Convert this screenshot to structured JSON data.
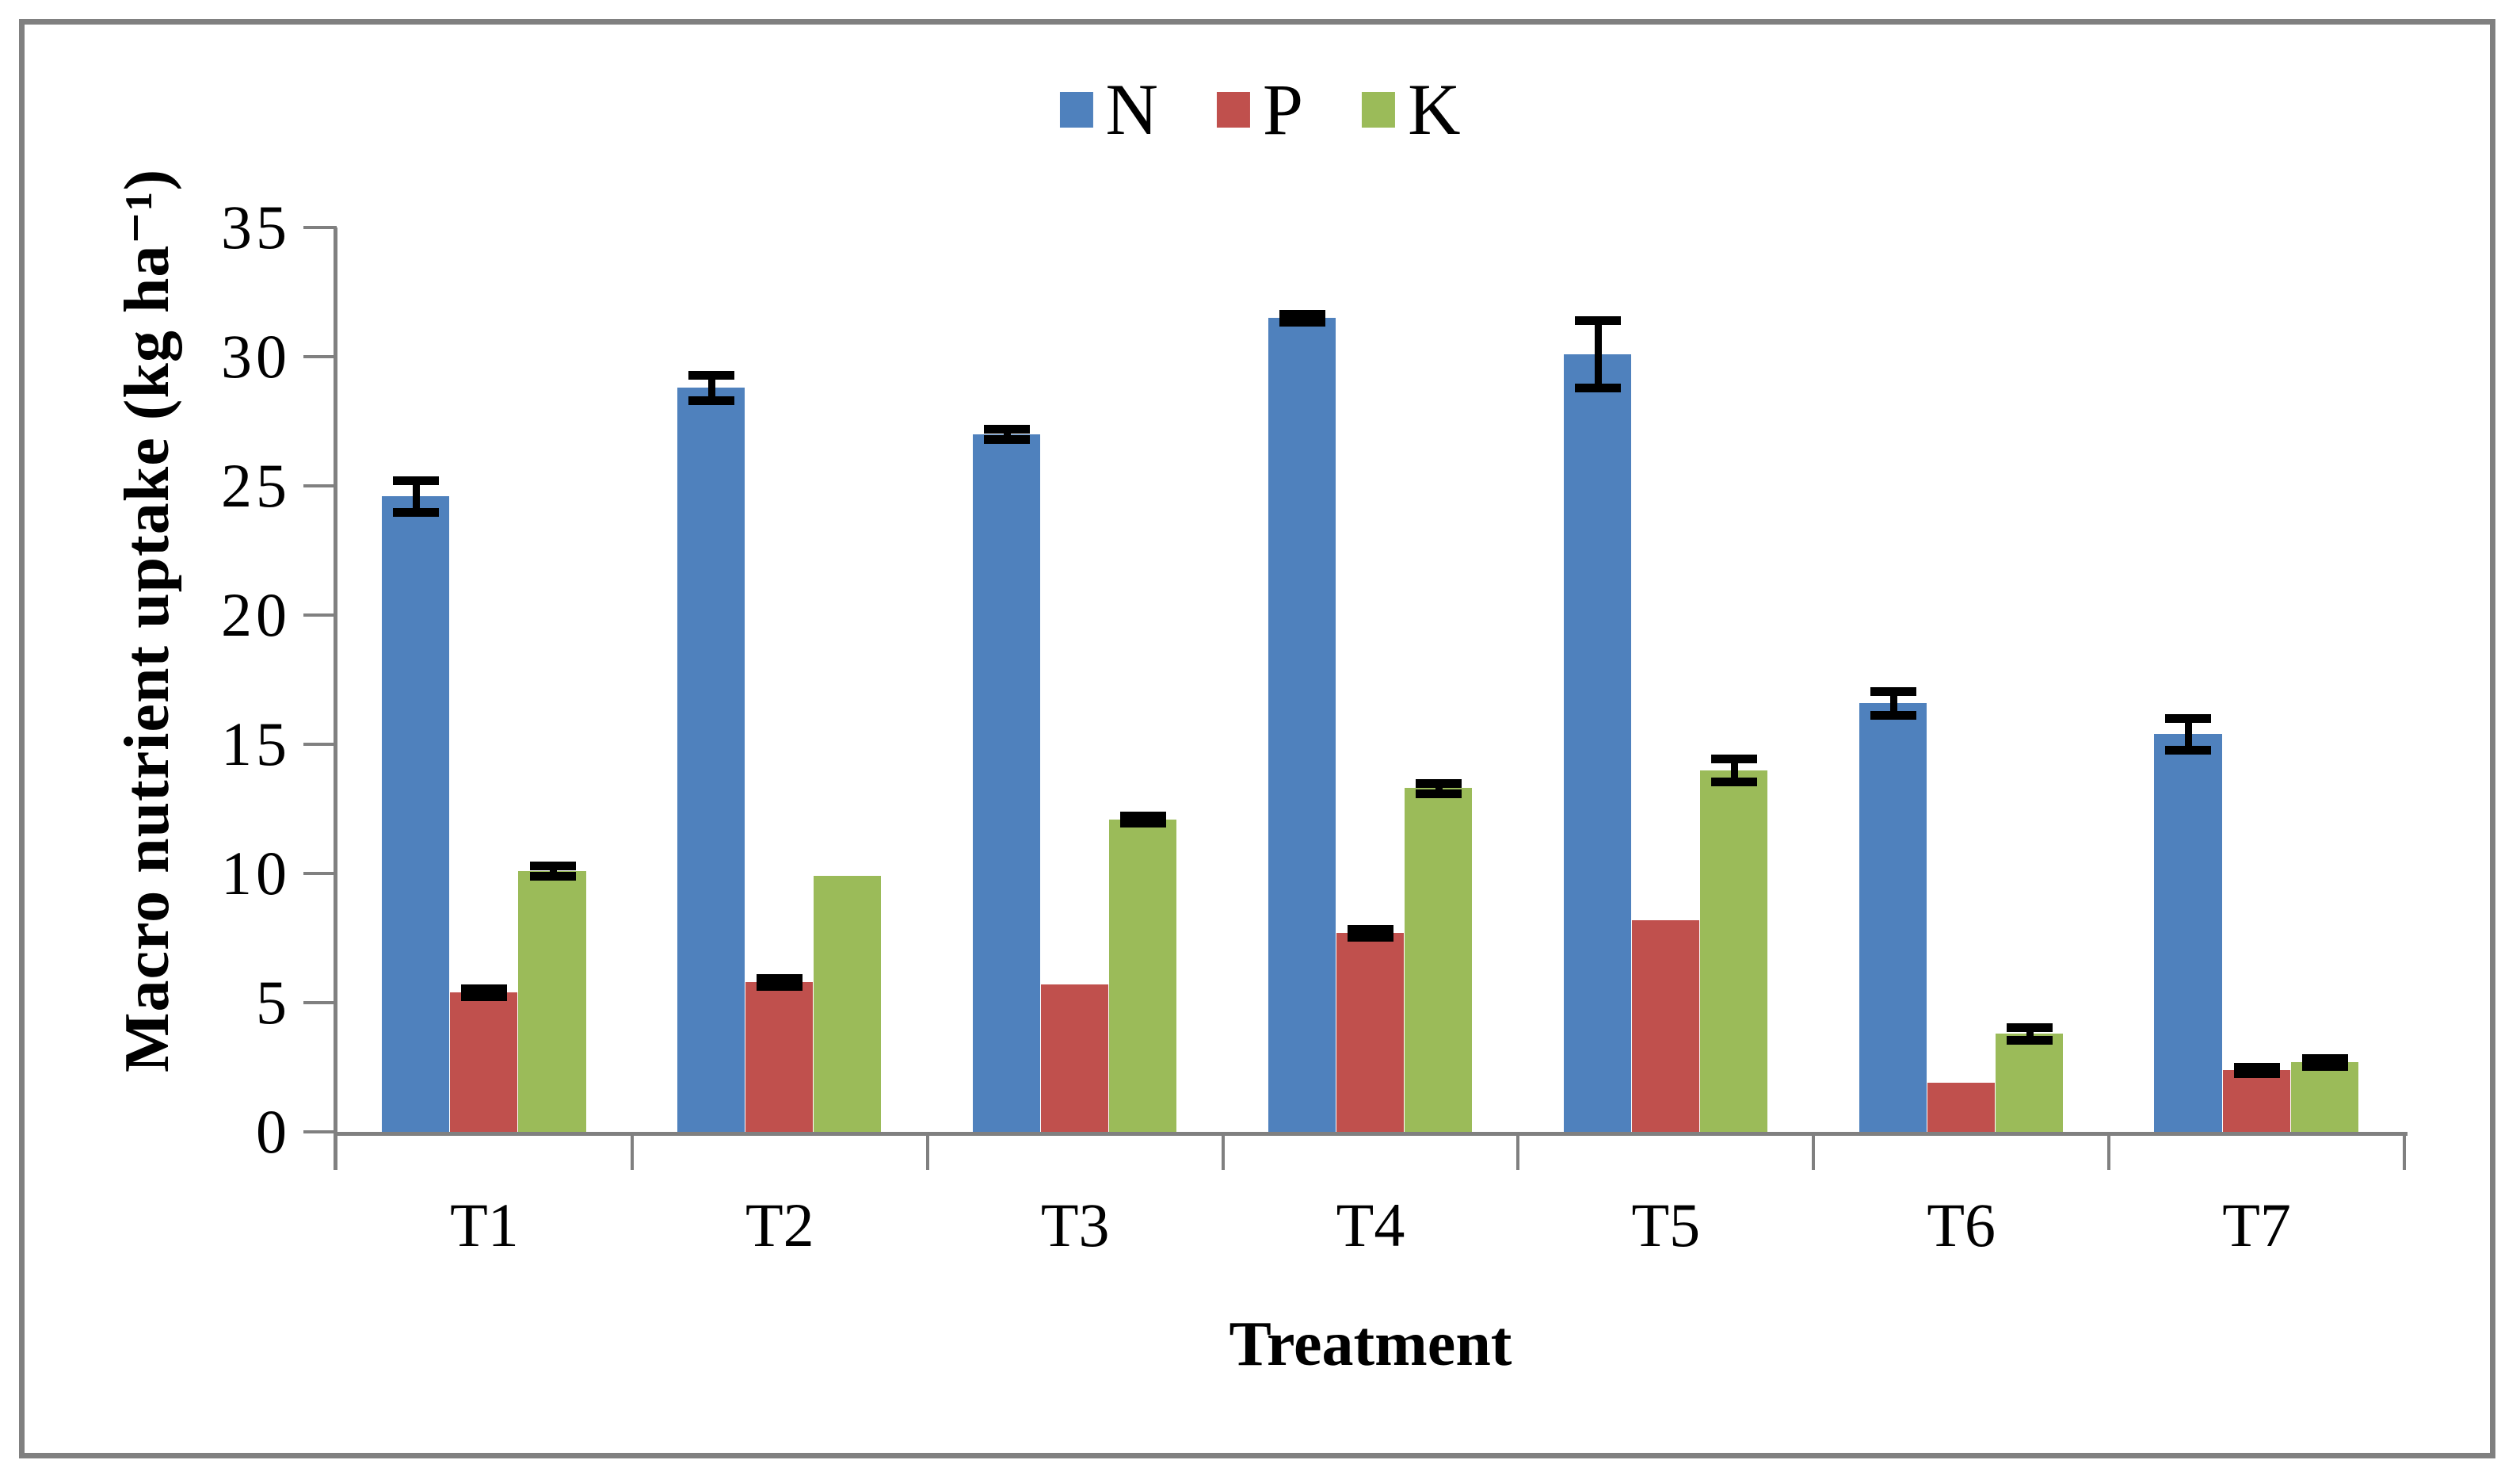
{
  "figure": {
    "border_color": "#808080",
    "axis_color": "#808080",
    "background": "#ffffff",
    "error_bar_color": "#000000"
  },
  "legend": {
    "items": [
      {
        "label": "N",
        "swatch_icon": "legend-square-blue",
        "color": "#4F81BD"
      },
      {
        "label": "P",
        "swatch_icon": "legend-square-red",
        "color": "#C0504D"
      },
      {
        "label": "K",
        "swatch_icon": "legend-square-green",
        "color": "#9BBB59"
      }
    ]
  },
  "chart_data": {
    "type": "bar",
    "title": "",
    "categories": [
      "T1",
      "T2",
      "T3",
      "T4",
      "T5",
      "T6",
      "T7"
    ],
    "series": [
      {
        "name": "N",
        "color": "#4F81BD",
        "values": [
          24.6,
          28.8,
          27.0,
          31.5,
          30.1,
          16.6,
          15.4
        ],
        "errors": [
          0.6,
          0.5,
          0.2,
          0.15,
          1.3,
          0.45,
          0.6
        ]
      },
      {
        "name": "P",
        "color": "#C0504D",
        "values": [
          5.4,
          5.8,
          5.7,
          7.7,
          8.2,
          1.9,
          2.4
        ],
        "errors": [
          0.15,
          0.15,
          0,
          0.15,
          0,
          0,
          0.12
        ]
      },
      {
        "name": "K",
        "color": "#9BBB59",
        "values": [
          10.1,
          9.9,
          12.1,
          13.3,
          14.0,
          3.8,
          2.7
        ],
        "errors": [
          0.2,
          0,
          0.15,
          0.2,
          0.45,
          0.25,
          0.15
        ]
      }
    ],
    "xlabel": "Treatment",
    "ylabel": "Macro nutrient uptake (kg ha⁻¹)",
    "ylim": [
      0,
      35
    ],
    "yticks": [
      0,
      5,
      10,
      15,
      20,
      25,
      30,
      35
    ],
    "grid": false,
    "legend_position": "top-center",
    "error_bars": true
  }
}
